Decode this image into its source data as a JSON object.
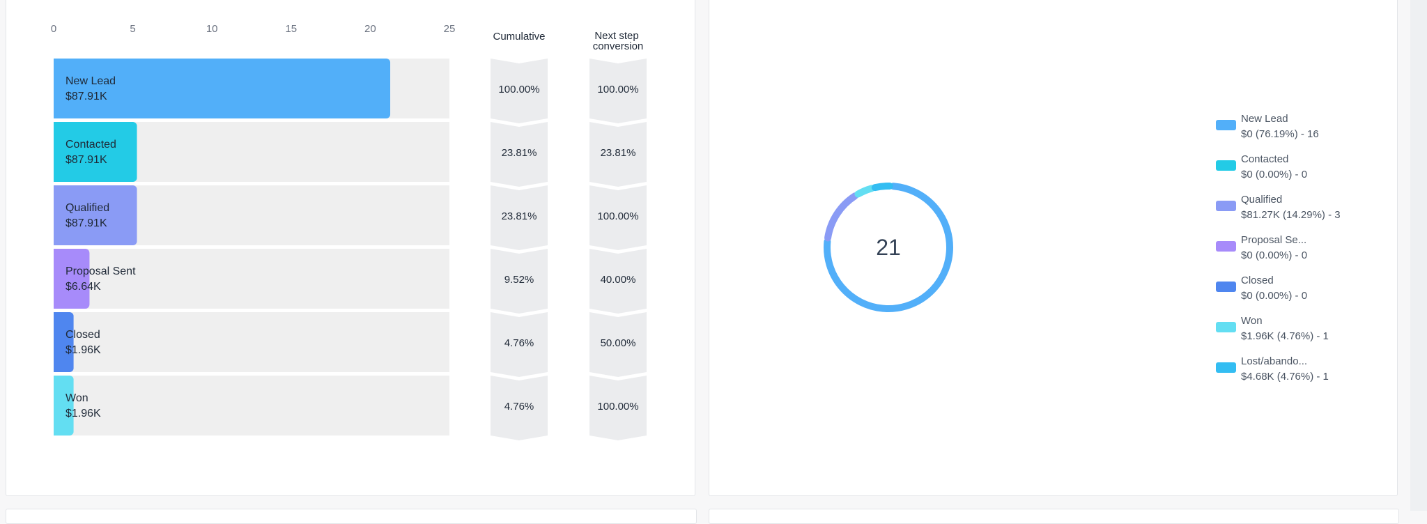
{
  "funnel": {
    "axis_ticks": [
      "0",
      "5",
      "10",
      "15",
      "20",
      "25"
    ],
    "headers": {
      "cumulative": "Cumulative",
      "next_step_line1": "Next step",
      "next_step_line2": "conversion"
    }
  },
  "donut": {
    "center_value": "21"
  },
  "legend": [
    {
      "name": "New Lead",
      "sub": "$0 (76.19%) - 16",
      "color": "#52aff9"
    },
    {
      "name": "Contacted",
      "sub": "$0 (0.00%) - 0",
      "color": "#23cbe6"
    },
    {
      "name": "Qualified",
      "sub": "$81.27K (14.29%) - 3",
      "color": "#8a9bf5"
    },
    {
      "name": "Proposal Se...",
      "sub": "$0 (0.00%) - 0",
      "color": "#a78bfa"
    },
    {
      "name": "Closed",
      "sub": "$0 (0.00%) - 0",
      "color": "#4f86ef"
    },
    {
      "name": "Won",
      "sub": "$1.96K (4.76%) - 1",
      "color": "#63def2"
    },
    {
      "name": "Lost/abando...",
      "sub": "$4.68K (4.76%) - 1",
      "color": "#33bdf2"
    }
  ],
  "chart_data": [
    {
      "type": "bar",
      "orientation": "horizontal",
      "categories": [
        "New Lead",
        "Contacted",
        "Qualified",
        "Proposal Sent",
        "Closed",
        "Won"
      ],
      "values": [
        21,
        5,
        5,
        2,
        1,
        1
      ],
      "value_labels": [
        "$87.91K",
        "$87.91K",
        "$87.91K",
        "$6.64K",
        "$1.96K",
        "$1.96K"
      ],
      "colors": [
        "#52aff9",
        "#23cbe6",
        "#8a9bf5",
        "#a78bfa",
        "#4f86ef",
        "#63def2"
      ],
      "xlim": [
        0,
        25
      ],
      "cumulative": [
        "100.00%",
        "23.81%",
        "23.81%",
        "9.52%",
        "4.76%",
        "4.76%"
      ],
      "next_step_conversion": [
        "100.00%",
        "23.81%",
        "100.00%",
        "40.00%",
        "50.00%",
        "100.00%"
      ]
    },
    {
      "type": "pie",
      "variant": "donut",
      "categories": [
        "New Lead",
        "Contacted",
        "Qualified",
        "Proposal Sent",
        "Closed",
        "Won",
        "Lost/abandoned"
      ],
      "values": [
        16,
        0,
        3,
        0,
        0,
        1,
        1
      ],
      "colors": [
        "#52aff9",
        "#23cbe6",
        "#8a9bf5",
        "#a78bfa",
        "#4f86ef",
        "#63def2",
        "#33bdf2"
      ],
      "total": 21
    }
  ]
}
